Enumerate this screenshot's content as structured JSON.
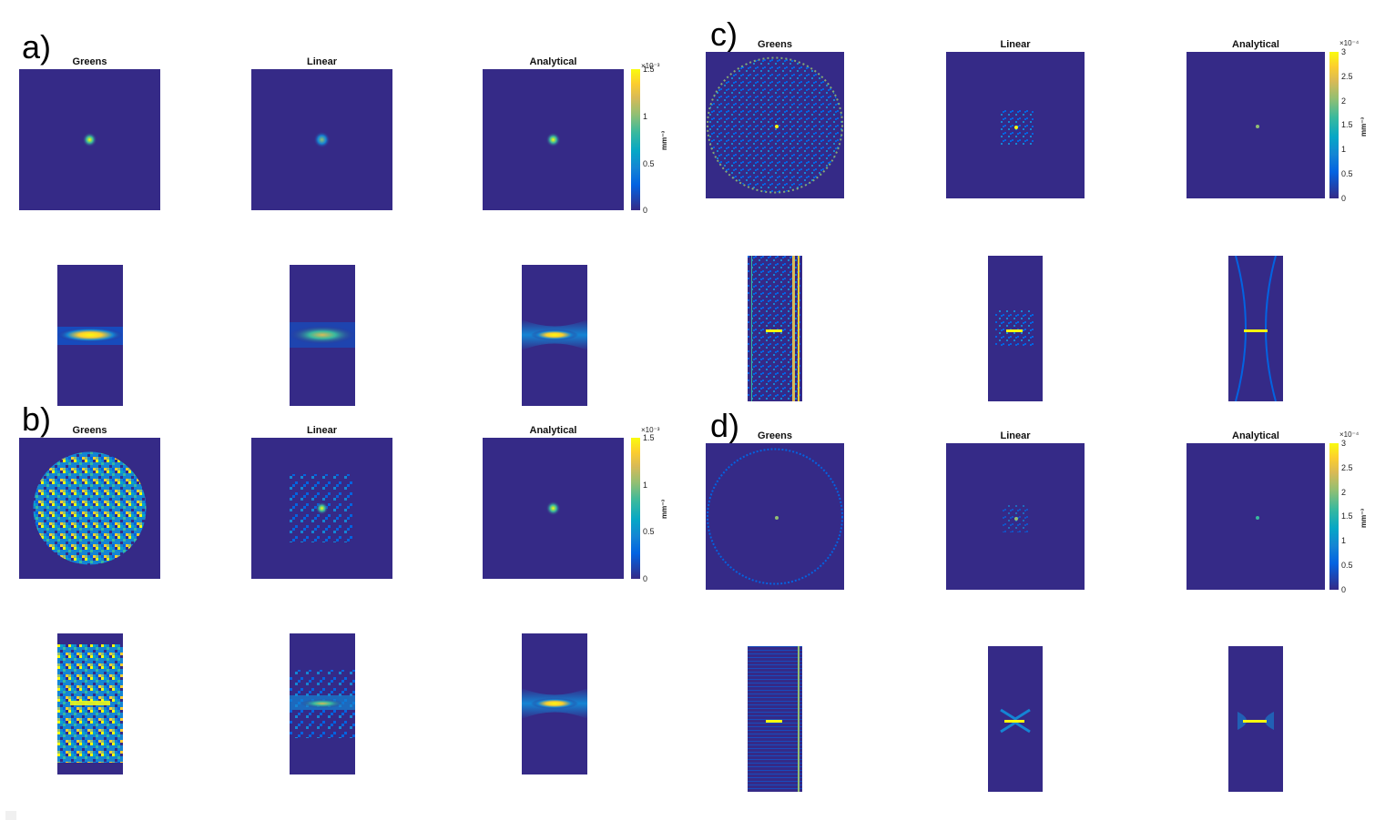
{
  "panels": [
    {
      "letter": "a)",
      "titles": [
        "Greens",
        "Linear",
        "Analytical"
      ],
      "colorbar": {
        "exponent": "×10⁻³",
        "unit": "mm⁻³",
        "ticks": [
          "1.5",
          "1",
          "0.5",
          "0"
        ]
      }
    },
    {
      "letter": "b)",
      "titles": [
        "Greens",
        "Linear",
        "Analytical"
      ],
      "colorbar": {
        "exponent": "×10⁻³",
        "unit": "mm⁻³",
        "ticks": [
          "1.5",
          "1",
          "0.5",
          "0"
        ]
      }
    },
    {
      "letter": "c)",
      "titles": [
        "Greens",
        "Linear",
        "Analytical"
      ],
      "colorbar": {
        "exponent": "×10⁻⁴",
        "unit": "mm⁻³",
        "ticks": [
          "3",
          "2.5",
          "2",
          "1.5",
          "1",
          "0.5",
          "0"
        ]
      }
    },
    {
      "letter": "d)",
      "titles": [
        "Greens",
        "Linear",
        "Analytical"
      ],
      "colorbar": {
        "exponent": "×10⁻⁴",
        "unit": "mm⁻³",
        "ticks": [
          "3",
          "2.5",
          "2",
          "1.5",
          "1",
          "0.5",
          "0"
        ]
      }
    }
  ],
  "colors": {
    "background_map": "#352a87",
    "peak": "#f9fb0e",
    "mid": "#38b99e"
  }
}
